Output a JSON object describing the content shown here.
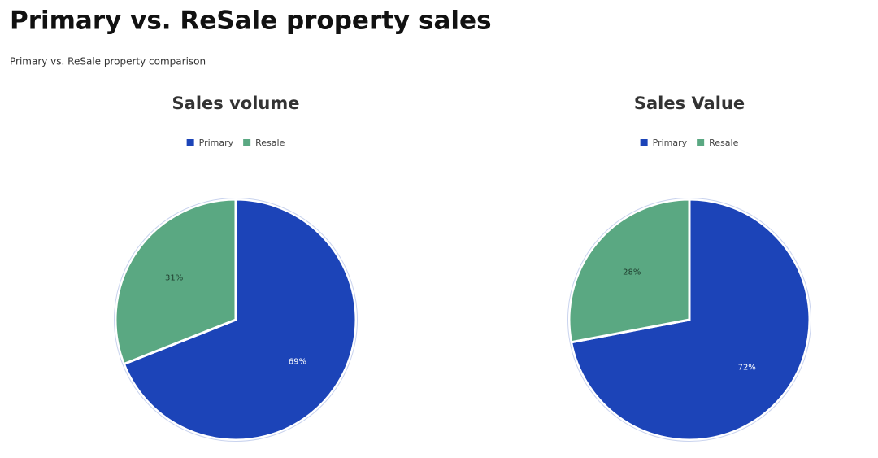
{
  "header": {
    "title": "Primary vs. ReSale property sales",
    "subtitle": "Primary vs. ReSale property comparison"
  },
  "chart_data": [
    {
      "type": "pie",
      "title": "Sales volume",
      "categories": [
        "Primary",
        "Resale"
      ],
      "values": [
        69,
        31
      ],
      "value_labels": [
        "69%",
        "31%"
      ],
      "colors": [
        "#1c44b8",
        "#5aa882"
      ],
      "label_colors": [
        "#ffffff",
        "#1d3b2c"
      ],
      "legend": "top"
    },
    {
      "type": "pie",
      "title": "Sales Value",
      "categories": [
        "Primary",
        "Resale"
      ],
      "values": [
        72,
        28
      ],
      "value_labels": [
        "72%",
        "28%"
      ],
      "colors": [
        "#1c44b8",
        "#5aa882"
      ],
      "label_colors": [
        "#ffffff",
        "#1d3b2c"
      ],
      "legend": "top"
    }
  ]
}
